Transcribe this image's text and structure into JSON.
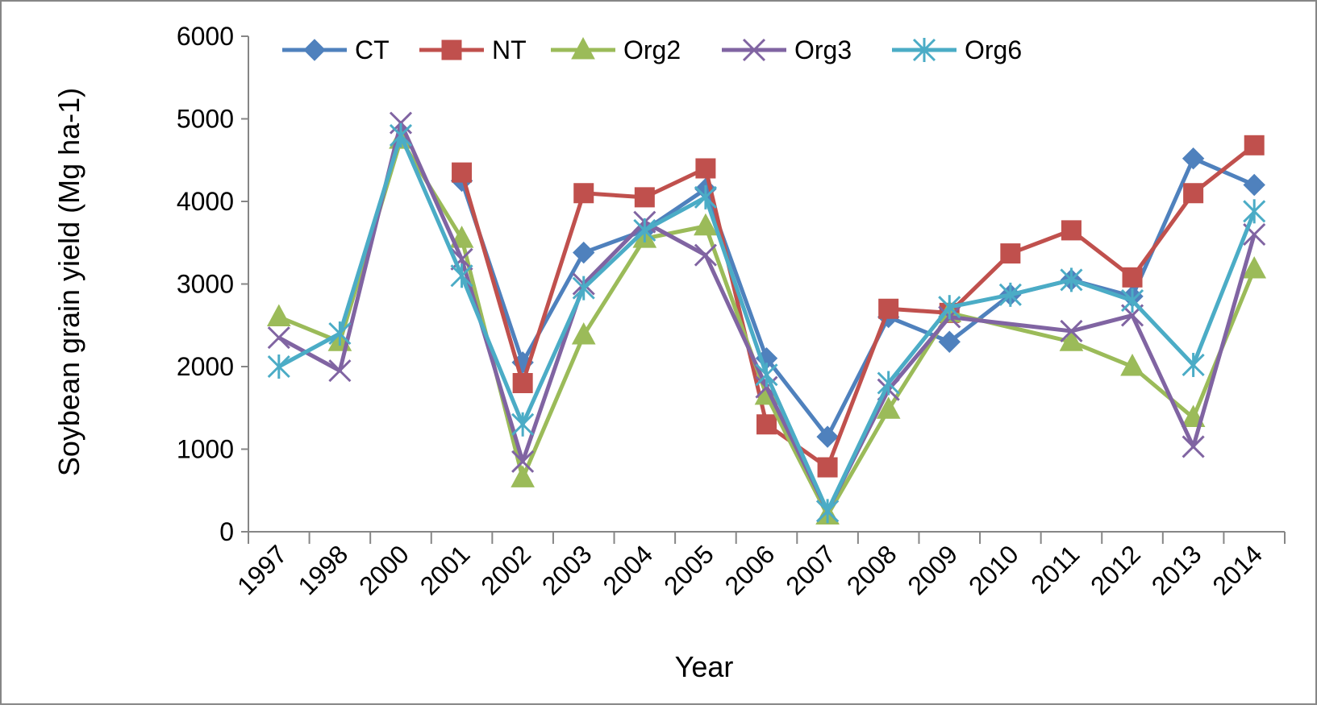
{
  "chart_data": {
    "type": "line",
    "title": "",
    "xlabel": "Year",
    "ylabel": "Soybean grain yield (Mg ha-1)",
    "ylim": [
      0,
      6000
    ],
    "yticks": [
      0,
      1000,
      2000,
      3000,
      4000,
      5000,
      6000
    ],
    "y_tick_labels": [
      "0",
      "1000",
      "2000",
      "3000",
      "4000",
      "5000",
      "6000"
    ],
    "grid": false,
    "legend_position": "top",
    "categories": [
      "1997",
      "1998",
      "2000",
      "2001",
      "2002",
      "2003",
      "2004",
      "2005",
      "2006",
      "2007",
      "2008",
      "2009",
      "2010",
      "2011",
      "2012",
      "2013",
      "2014"
    ],
    "series": [
      {
        "name": "CT",
        "color": "#4F81BD",
        "marker": "diamond",
        "values": [
          null,
          null,
          null,
          4250,
          2050,
          3380,
          3650,
          4150,
          2100,
          1150,
          2600,
          2300,
          2870,
          3050,
          2850,
          4520,
          4200
        ]
      },
      {
        "name": "NT",
        "color": "#C0504D",
        "marker": "square",
        "values": [
          null,
          null,
          null,
          4350,
          1800,
          4100,
          4050,
          4400,
          1300,
          780,
          2700,
          2650,
          3370,
          3650,
          3080,
          4100,
          4680
        ]
      },
      {
        "name": "Org2",
        "color": "#9BBB59",
        "marker": "triangle",
        "values": [
          2600,
          2300,
          4750,
          3550,
          650,
          2380,
          3550,
          3700,
          1650,
          200,
          1480,
          2650,
          null,
          2300,
          2000,
          1380,
          3180
        ]
      },
      {
        "name": "Org3",
        "color": "#8064A2",
        "marker": "x",
        "values": [
          2350,
          1950,
          4950,
          3300,
          850,
          3000,
          3750,
          3350,
          1750,
          250,
          1720,
          2600,
          null,
          2430,
          2620,
          1030,
          3600
        ]
      },
      {
        "name": "Org6",
        "color": "#4BACC6",
        "marker": "star",
        "values": [
          2000,
          2400,
          4800,
          3100,
          1300,
          2950,
          3650,
          4050,
          1900,
          250,
          1800,
          2720,
          2870,
          3050,
          2800,
          2020,
          3880
        ]
      }
    ]
  }
}
